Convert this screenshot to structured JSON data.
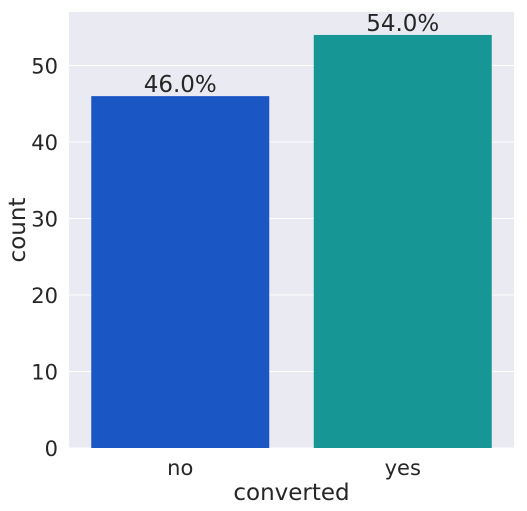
{
  "chart_data": {
    "type": "bar",
    "title": "",
    "xlabel": "converted",
    "ylabel": "count",
    "categories": [
      "no",
      "yes"
    ],
    "values": [
      46,
      54
    ],
    "bar_labels": [
      "46.0%",
      "54.0%"
    ],
    "colors": [
      "#1a56c4",
      "#169796"
    ],
    "ylim": [
      0,
      57
    ],
    "yticks": [
      0,
      10,
      20,
      30,
      40,
      50
    ],
    "grid": true,
    "legend": "none",
    "background": "#eaeaf2"
  }
}
